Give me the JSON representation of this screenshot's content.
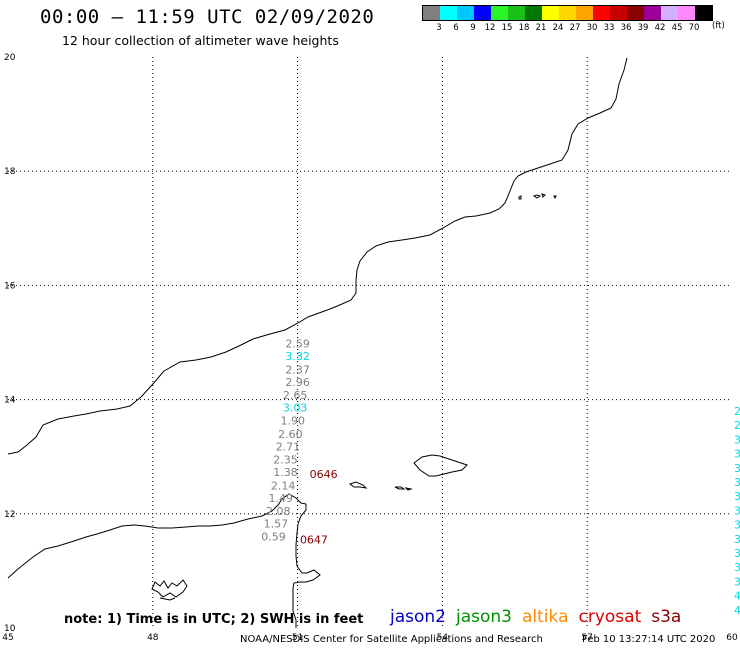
{
  "header": {
    "title": "00:00 – 11:59 UTC 02/09/2020",
    "subtitle": "12 hour collection of altimeter wave heights"
  },
  "legend": {
    "colors": [
      "#7f7f7f",
      "#00ffff",
      "#00c8ff",
      "#0000ff",
      "#28f428",
      "#18c018",
      "#007800",
      "#ffff00",
      "#ffd700",
      "#ffa500",
      "#ff0000",
      "#c80000",
      "#8b0000",
      "#9b009b",
      "#d0b0ff",
      "#ff88ff",
      "#000000"
    ],
    "labels": [
      "3",
      "6",
      "9",
      "12",
      "15",
      "18",
      "21",
      "24",
      "27",
      "30",
      "33",
      "36",
      "39",
      "42",
      "45",
      "70"
    ],
    "unit": "(ft)"
  },
  "map": {
    "lon_range": [
      45,
      60
    ],
    "lat_range": [
      10,
      20
    ],
    "x_ticks": [
      "45",
      "48",
      "51",
      "54",
      "57",
      "60"
    ],
    "y_ticks": [
      "10",
      "12",
      "14",
      "16",
      "18",
      "20"
    ],
    "swh_labels": [
      {
        "text": "2.59",
        "lon": 51.0,
        "lat": 14.98,
        "color": "#808080"
      },
      {
        "text": "3.32",
        "lon": 51.0,
        "lat": 14.76,
        "color": "#00d8e0"
      },
      {
        "text": "2.37",
        "lon": 51.0,
        "lat": 14.53,
        "color": "#808080"
      },
      {
        "text": "2.96",
        "lon": 51.0,
        "lat": 14.31,
        "color": "#808080"
      },
      {
        "text": "2.65",
        "lon": 50.95,
        "lat": 14.08,
        "color": "#808080"
      },
      {
        "text": "3.03",
        "lon": 50.95,
        "lat": 13.86,
        "color": "#00d8e0"
      },
      {
        "text": "1.90",
        "lon": 50.9,
        "lat": 13.63,
        "color": "#808080"
      },
      {
        "text": "2.60",
        "lon": 50.85,
        "lat": 13.4,
        "color": "#808080"
      },
      {
        "text": "2.71",
        "lon": 50.8,
        "lat": 13.18,
        "color": "#808080"
      },
      {
        "text": "2.35",
        "lon": 50.75,
        "lat": 12.95,
        "color": "#808080"
      },
      {
        "text": "1.38",
        "lon": 50.75,
        "lat": 12.73,
        "color": "#808080"
      },
      {
        "text": "2.14",
        "lon": 50.7,
        "lat": 12.5,
        "color": "#808080"
      },
      {
        "text": "1.49",
        "lon": 50.65,
        "lat": 12.28,
        "color": "#808080"
      },
      {
        "text": "2.08",
        "lon": 50.6,
        "lat": 12.05,
        "color": "#808080"
      },
      {
        "text": "1.57",
        "lon": 50.55,
        "lat": 11.83,
        "color": "#808080"
      },
      {
        "text": "0.59",
        "lon": 50.5,
        "lat": 11.6,
        "color": "#808080"
      }
    ],
    "time_labels": [
      {
        "text": "0646",
        "lon": 51.0,
        "lat": 12.7
      },
      {
        "text": "0647",
        "lon": 50.8,
        "lat": 11.55
      }
    ],
    "edge_labels_color": "#00d8e0"
  },
  "footer": {
    "note": "note: 1) Time is in UTC; 2) SWH is in feet",
    "satellites": [
      {
        "name": "jason2",
        "color": "#0000cc"
      },
      {
        "name": "jason3",
        "color": "#009000"
      },
      {
        "name": "altika",
        "color": "#ff8c00"
      },
      {
        "name": "cryosat",
        "color": "#dd0000"
      },
      {
        "name": "s3a",
        "color": "#8b0000"
      }
    ],
    "credit": "NOAA/NESDIS Center for Satellite Applications and Research",
    "timestamp": "Feb 10 13:27:14 UTC 2020"
  }
}
